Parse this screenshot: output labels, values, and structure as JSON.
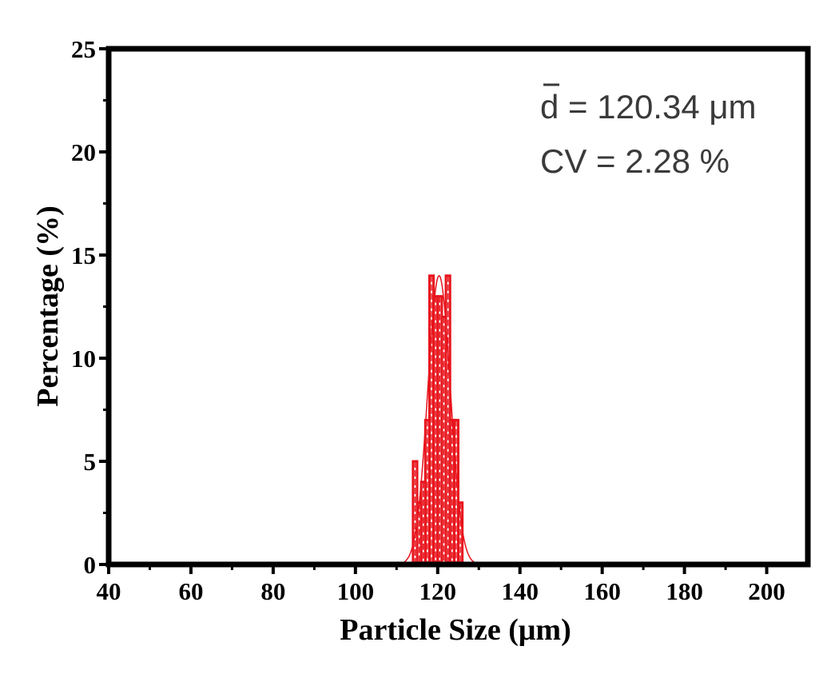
{
  "chart_data": {
    "type": "bar",
    "xlabel": "Particle Size (μm)",
    "ylabel": "Percentage (%)",
    "xlim": [
      40,
      210
    ],
    "ylim": [
      0,
      25
    ],
    "x_ticks": [
      "40",
      "60",
      "80",
      "100",
      "120",
      "140",
      "160",
      "180",
      "200"
    ],
    "y_ticks": [
      "0",
      "5",
      "10",
      "15",
      "20",
      "25"
    ],
    "bin_width": 1,
    "bins": [
      {
        "x": 114.5,
        "value": 5
      },
      {
        "x": 115.5,
        "value": 3
      },
      {
        "x": 116.5,
        "value": 4
      },
      {
        "x": 117.5,
        "value": 7
      },
      {
        "x": 118.5,
        "value": 14
      },
      {
        "x": 119.5,
        "value": 13
      },
      {
        "x": 120.5,
        "value": 13
      },
      {
        "x": 121.5,
        "value": 12
      },
      {
        "x": 122.5,
        "value": 14
      },
      {
        "x": 123.5,
        "value": 7
      },
      {
        "x": 124.5,
        "value": 7
      },
      {
        "x": 125.5,
        "value": 3
      }
    ],
    "fit_curve": {
      "type": "gaussian",
      "mean": 120.34,
      "peak": 14
    },
    "annotations": {
      "mean_symbol": "d",
      "mean_text": " = 120.34 μm",
      "cv_text": "CV = 2.28 %"
    },
    "colors": {
      "bars": "#e8141c",
      "fit": "#e8141c",
      "frame": "#000000",
      "annotation": "#3a3a3a"
    },
    "grid": false,
    "legend": "none"
  }
}
